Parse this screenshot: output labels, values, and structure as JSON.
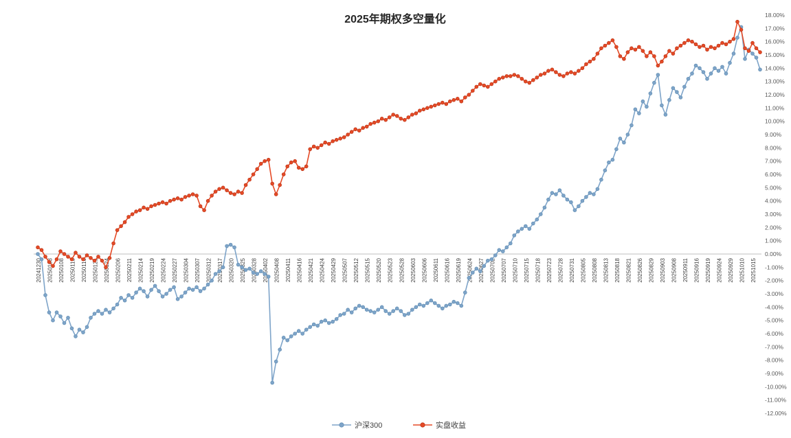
{
  "page": {
    "background": "#ffffff"
  },
  "chart_data": {
    "type": "line",
    "title": "2025年期权多空量化",
    "legend_position": "bottom",
    "grid": false,
    "ylim": [
      -12,
      18
    ],
    "ytick_step": 1,
    "ytick_format": "0.00%",
    "x_label_every": 3,
    "axis_color": "#bfbfbf",
    "x": [
      "20241230",
      "20241231",
      "20250102",
      "20250103",
      "20250106",
      "20250107",
      "20250108",
      "20250109",
      "20250110",
      "20250113",
      "20250114",
      "20250115",
      "20250116",
      "20250117",
      "20250120",
      "20250121",
      "20250122",
      "20250123",
      "20250124",
      "20250127",
      "20250205",
      "20250206",
      "20250207",
      "20250210",
      "20250211",
      "20250212",
      "20250213",
      "20250214",
      "20250217",
      "20250218",
      "20250219",
      "20250220",
      "20250221",
      "20250224",
      "20250225",
      "20250226",
      "20250227",
      "20250228",
      "20250303",
      "20250304",
      "20250305",
      "20250306",
      "20250307",
      "20250310",
      "20250311",
      "20250312",
      "20250313",
      "20250314",
      "20250317",
      "20250318",
      "20250319",
      "20250320",
      "20250321",
      "20250324",
      "20250325",
      "20250326",
      "20250327",
      "20250328",
      "20250331",
      "20250401",
      "20250402",
      "20250403",
      "20250407",
      "20250408",
      "20250409",
      "20250410",
      "20250411",
      "20250414",
      "20250415",
      "20250416",
      "20250417",
      "20250418",
      "20250421",
      "20250422",
      "20250423",
      "20250424",
      "20250425",
      "20250428",
      "20250429",
      "20250430",
      "20250506",
      "20250507",
      "20250508",
      "20250509",
      "20250512",
      "20250513",
      "20250514",
      "20250515",
      "20250516",
      "20250519",
      "20250520",
      "20250521",
      "20250522",
      "20250523",
      "20250526",
      "20250527",
      "20250528",
      "20250529",
      "20250530",
      "20250603",
      "20250604",
      "20250605",
      "20250606",
      "20250609",
      "20250610",
      "20250611",
      "20250612",
      "20250613",
      "20250616",
      "20250617",
      "20250618",
      "20250619",
      "20250620",
      "20250623",
      "20250624",
      "20250625",
      "20250626",
      "20250627",
      "20250630",
      "20250701",
      "20250702",
      "20250703",
      "20250704",
      "20250707",
      "20250708",
      "20250709",
      "20250710",
      "20250711",
      "20250714",
      "20250715",
      "20250716",
      "20250717",
      "20250718",
      "20250721",
      "20250722",
      "20250723",
      "20250724",
      "20250725",
      "20250728",
      "20250729",
      "20250730",
      "20250731",
      "20250801",
      "20250804",
      "20250805",
      "20250806",
      "20250807",
      "20250808",
      "20250811",
      "20250812",
      "20250813",
      "20250814",
      "20250815",
      "20250818",
      "20250819",
      "20250820",
      "20250821",
      "20250822",
      "20250825",
      "20250826",
      "20250827",
      "20250828",
      "20250829",
      "20250901",
      "20250902",
      "20250903",
      "20250904",
      "20250905",
      "20250908",
      "20250909",
      "20250910",
      "20250911",
      "20250912",
      "20250915",
      "20250916",
      "20250917",
      "20250918",
      "20250919",
      "20250922",
      "20250923",
      "20250924",
      "20250925",
      "20250926",
      "20250929",
      "20250930",
      "20251009",
      "20251010",
      "20251013",
      "20251014",
      "20251015",
      "20251016",
      "20251017"
    ],
    "series": [
      {
        "name": "沪深300",
        "color": "#7EA4C9",
        "marker_stroke": "#6591B5",
        "values": [
          0.0,
          -0.4,
          -3.1,
          -4.4,
          -5.0,
          -4.4,
          -4.7,
          -5.2,
          -4.8,
          -5.6,
          -6.2,
          -5.7,
          -5.9,
          -5.5,
          -4.8,
          -4.5,
          -4.3,
          -4.5,
          -4.2,
          -4.4,
          -4.1,
          -3.8,
          -3.3,
          -3.5,
          -3.1,
          -3.3,
          -2.9,
          -2.6,
          -2.8,
          -3.2,
          -2.7,
          -2.4,
          -2.8,
          -3.2,
          -3.0,
          -2.7,
          -2.5,
          -3.4,
          -3.2,
          -2.9,
          -2.6,
          -2.7,
          -2.5,
          -2.8,
          -2.6,
          -2.3,
          -2.0,
          -1.5,
          -1.3,
          -1.0,
          0.6,
          0.7,
          0.5,
          -0.8,
          -1.0,
          -1.2,
          -1.1,
          -1.4,
          -1.5,
          -1.3,
          -1.5,
          -1.7,
          -9.7,
          -8.1,
          -7.2,
          -6.3,
          -6.5,
          -6.2,
          -6.0,
          -5.8,
          -6.0,
          -5.7,
          -5.5,
          -5.3,
          -5.4,
          -5.1,
          -5.0,
          -5.2,
          -5.1,
          -4.9,
          -4.6,
          -4.5,
          -4.2,
          -4.4,
          -4.1,
          -3.9,
          -4.0,
          -4.2,
          -4.3,
          -4.4,
          -4.2,
          -4.0,
          -4.3,
          -4.5,
          -4.3,
          -4.1,
          -4.3,
          -4.6,
          -4.5,
          -4.2,
          -4.0,
          -3.8,
          -3.9,
          -3.7,
          -3.5,
          -3.7,
          -3.9,
          -4.1,
          -3.9,
          -3.8,
          -3.6,
          -3.7,
          -3.9,
          -2.9,
          -1.8,
          -1.4,
          -1.1,
          -1.3,
          -0.9,
          -0.5,
          -0.4,
          -0.1,
          0.3,
          0.2,
          0.5,
          0.8,
          1.4,
          1.7,
          1.9,
          2.1,
          1.9,
          2.3,
          2.6,
          3.0,
          3.5,
          4.1,
          4.6,
          4.5,
          4.8,
          4.4,
          4.1,
          3.9,
          3.3,
          3.6,
          4.0,
          4.3,
          4.6,
          4.5,
          4.9,
          5.6,
          6.3,
          6.9,
          7.1,
          7.9,
          8.7,
          8.4,
          9.0,
          9.7,
          10.9,
          10.6,
          11.5,
          11.1,
          12.1,
          12.9,
          13.5,
          11.2,
          10.5,
          11.6,
          12.5,
          12.2,
          11.8,
          12.6,
          13.2,
          13.6,
          14.2,
          14.0,
          13.7,
          13.2,
          13.6,
          14.0,
          13.8,
          14.1,
          13.6,
          14.4,
          15.1,
          16.3,
          17.1,
          14.7,
          15.4,
          15.1,
          14.8,
          13.9
        ]
      },
      {
        "name": "实盘收益",
        "color": "#E54A26",
        "marker_stroke": "#C0391B",
        "values": [
          0.5,
          0.3,
          -0.2,
          -0.6,
          -0.9,
          -0.4,
          0.2,
          0.0,
          -0.2,
          -0.4,
          0.1,
          -0.2,
          -0.4,
          -0.1,
          -0.3,
          -0.5,
          -0.2,
          -0.5,
          -1.0,
          -0.3,
          0.8,
          1.8,
          2.1,
          2.4,
          2.8,
          3.0,
          3.2,
          3.3,
          3.5,
          3.4,
          3.6,
          3.7,
          3.8,
          3.9,
          3.8,
          4.0,
          4.1,
          4.2,
          4.1,
          4.3,
          4.4,
          4.5,
          4.4,
          3.6,
          3.3,
          4.0,
          4.4,
          4.7,
          4.9,
          5.0,
          4.8,
          4.6,
          4.5,
          4.7,
          4.6,
          5.2,
          5.6,
          6.0,
          6.4,
          6.8,
          7.0,
          7.1,
          5.3,
          4.5,
          5.2,
          6.0,
          6.6,
          6.9,
          7.0,
          6.5,
          6.4,
          6.6,
          7.9,
          8.1,
          8.0,
          8.2,
          8.4,
          8.3,
          8.5,
          8.6,
          8.7,
          8.8,
          9.0,
          9.2,
          9.4,
          9.3,
          9.5,
          9.6,
          9.8,
          9.9,
          10.0,
          10.2,
          10.1,
          10.3,
          10.5,
          10.4,
          10.2,
          10.1,
          10.3,
          10.5,
          10.6,
          10.8,
          10.9,
          11.0,
          11.1,
          11.2,
          11.3,
          11.4,
          11.3,
          11.5,
          11.6,
          11.7,
          11.5,
          11.8,
          12.0,
          12.3,
          12.6,
          12.8,
          12.7,
          12.6,
          12.8,
          13.0,
          13.2,
          13.3,
          13.4,
          13.4,
          13.5,
          13.4,
          13.2,
          13.0,
          12.9,
          13.1,
          13.3,
          13.5,
          13.6,
          13.8,
          13.9,
          13.7,
          13.5,
          13.4,
          13.6,
          13.7,
          13.6,
          13.8,
          14.0,
          14.3,
          14.5,
          14.7,
          15.1,
          15.5,
          15.7,
          15.9,
          16.1,
          15.6,
          14.9,
          14.7,
          15.2,
          15.5,
          15.4,
          15.6,
          15.3,
          14.9,
          15.2,
          14.9,
          14.2,
          14.5,
          14.9,
          15.3,
          15.1,
          15.5,
          15.7,
          15.9,
          16.1,
          16.0,
          15.8,
          15.6,
          15.7,
          15.4,
          15.6,
          15.5,
          15.7,
          15.9,
          15.8,
          16.0,
          16.2,
          17.5,
          16.9,
          15.5,
          15.3,
          15.9,
          15.5,
          15.2
        ]
      }
    ]
  }
}
